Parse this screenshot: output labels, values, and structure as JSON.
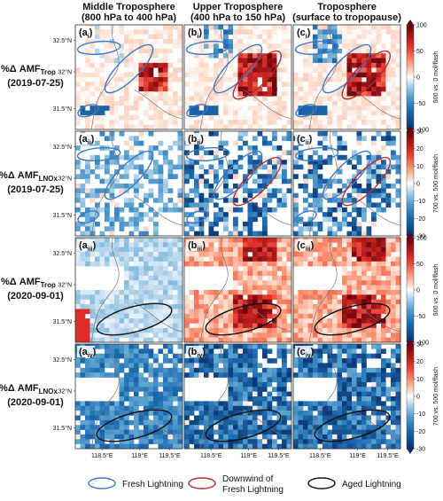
{
  "chart_data": {
    "type": "heatmap",
    "column_titles": [
      {
        "line1": "Middle Troposphere",
        "line2": "(800 hPa to 400 hPa)"
      },
      {
        "line1": "Upper Troposphere",
        "line2": "(400 hPa to 150 hPa)"
      },
      {
        "line1": "Troposphere",
        "line2": "(surface to tropopause)"
      }
    ],
    "rows": [
      {
        "label_main": "%Δ AMF",
        "label_sub": "Trop",
        "date": "(2019-07-25)",
        "panel_labels": [
          "(ai)",
          "(bi)",
          "(ci)"
        ],
        "y_ticks": [
          "32.5°N",
          "32°N",
          "31.5°N"
        ],
        "colorbar": {
          "label": "500 vs. 0 mol/flash",
          "ticks": [
            "100",
            "50",
            "0",
            "-50",
            "-100"
          ],
          "range": [
            -100,
            100
          ]
        },
        "ellipses": [
          "fresh",
          "fresh",
          "downwind"
        ]
      },
      {
        "label_main": "%Δ AMF",
        "label_sub": "LNOx",
        "date": "(2019-07-25)",
        "panel_labels": [
          "(aii)",
          "(bii)",
          "(cii)"
        ],
        "y_ticks": [
          "32.5°N",
          "32°N",
          "31.5°N"
        ],
        "colorbar": {
          "label": "700 vs. 500 mol/flash",
          "ticks": [
            "30",
            "20",
            "10",
            "0",
            "-10",
            "-20",
            "-30"
          ],
          "range": [
            -30,
            30
          ]
        },
        "ellipses": [
          "fresh",
          "fresh",
          "downwind"
        ]
      },
      {
        "label_main": "%Δ AMF",
        "label_sub": "Trop",
        "date": "(2020-09-01)",
        "panel_labels": [
          "(aiii)",
          "(biii)",
          "(ciii)"
        ],
        "y_ticks": [
          "32.5°N",
          "32°N",
          "31.5°N"
        ],
        "colorbar": {
          "label": "500 vs. 0 mol/flash",
          "ticks": [
            "100",
            "50",
            "0",
            "-50",
            "-100"
          ],
          "range": [
            -100,
            100
          ]
        },
        "ellipses": [
          "aged"
        ]
      },
      {
        "label_main": "%Δ AMF",
        "label_sub": "LNOx",
        "date": "(2020-09-01)",
        "panel_labels": [
          "(aiv)",
          "(biv)",
          "(civ)"
        ],
        "y_ticks": [
          "32.5°N",
          "32°N",
          "31.5°N"
        ],
        "colorbar": {
          "label": "700 vs. 500 mol/flash",
          "ticks": [
            "30",
            "20",
            "10",
            "0",
            "-10",
            "-20",
            "-30"
          ],
          "range": [
            -30,
            30
          ]
        },
        "ellipses": [
          "aged"
        ]
      }
    ],
    "x_ticks": [
      "118.5°E",
      "119°E",
      "119.5°E"
    ],
    "legend": [
      {
        "label": "Fresh Lightning",
        "color": "#3b78c4"
      },
      {
        "label": "Downwind of",
        "label2": "Fresh Lightning",
        "color": "#b03030"
      },
      {
        "label": "Aged Lightning",
        "color": "#111111"
      }
    ],
    "colormap": "diverging blue-white-red"
  }
}
